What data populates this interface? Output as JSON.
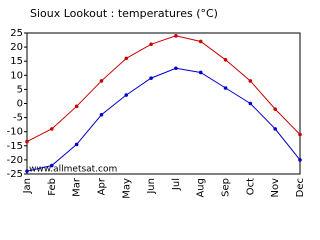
{
  "chart_data": {
    "type": "line",
    "title": "Sioux Lookout : temperatures (°C)",
    "watermark": "www.allmetsat.com",
    "categories": [
      "Jan",
      "Feb",
      "Mar",
      "Apr",
      "May",
      "Jun",
      "Jul",
      "Aug",
      "Sep",
      "Oct",
      "Nov",
      "Dec"
    ],
    "series": [
      {
        "color": "#cc0000",
        "values": [
          -13.5,
          -9,
          -1,
          8,
          16,
          21,
          24,
          22,
          15.5,
          8,
          -2,
          -11
        ]
      },
      {
        "color": "#0000cc",
        "values": [
          -24,
          -22,
          -14.5,
          -4,
          3,
          9,
          12.5,
          11,
          5.5,
          0,
          -9,
          -20
        ]
      }
    ],
    "ylim": [
      -25,
      25
    ],
    "yticks": [
      -25,
      -20,
      -15,
      -10,
      -5,
      0,
      5,
      10,
      15,
      20,
      25
    ]
  }
}
